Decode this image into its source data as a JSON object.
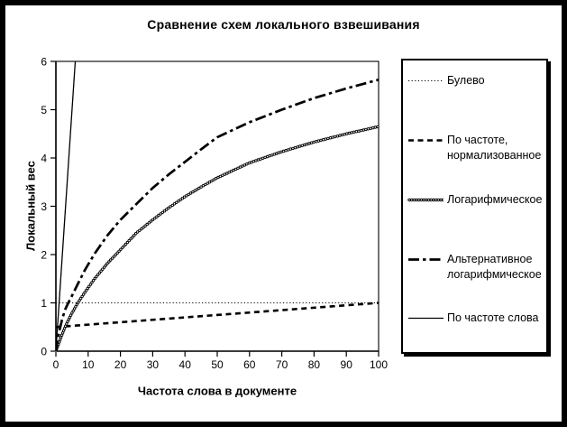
{
  "chart_data": {
    "type": "line",
    "title": "Сравнение схем локального взвешивания",
    "xlabel": "Частота слова в документе",
    "ylabel": "Локальный вес",
    "xlim": [
      0,
      100
    ],
    "ylim": [
      0,
      6
    ],
    "xticks": [
      0,
      10,
      20,
      30,
      40,
      50,
      60,
      70,
      80,
      90,
      100
    ],
    "yticks": [
      0,
      1,
      2,
      3,
      4,
      5,
      6
    ],
    "grid": false,
    "background": "#ffffff",
    "line_color": "#000000",
    "legend_position": "right",
    "series": [
      {
        "name": "Булево",
        "style": "dotted-thin",
        "x": [
          0,
          100
        ],
        "y": [
          1,
          1
        ]
      },
      {
        "name": "По частоте,\nнормализованное",
        "style": "dashed-bold",
        "x": [
          0,
          100
        ],
        "y": [
          0.5,
          1.0
        ]
      },
      {
        "name": "Логарифмическое",
        "style": "circle-chain",
        "x": [
          0,
          1,
          2,
          3,
          4,
          5,
          7,
          9,
          12,
          16,
          20,
          25,
          30,
          35,
          40,
          45,
          50,
          60,
          70,
          80,
          90,
          100
        ],
        "y": [
          0,
          0.18,
          0.36,
          0.52,
          0.66,
          0.79,
          1.02,
          1.22,
          1.5,
          1.82,
          2.1,
          2.45,
          2.72,
          2.97,
          3.2,
          3.4,
          3.59,
          3.9,
          4.13,
          4.33,
          4.5,
          4.65
        ]
      },
      {
        "name": "Альтернативное\nлогарифмическое",
        "style": "dashdot-bold",
        "x": [
          0,
          1,
          2,
          3,
          4,
          5,
          7,
          9,
          12,
          16,
          20,
          25,
          30,
          35,
          40,
          45,
          50,
          60,
          70,
          80,
          90,
          100
        ],
        "y": [
          0,
          0.4,
          0.68,
          0.88,
          1.02,
          1.15,
          1.42,
          1.68,
          2.02,
          2.4,
          2.72,
          3.05,
          3.38,
          3.66,
          3.92,
          4.18,
          4.43,
          4.74,
          5.0,
          5.24,
          5.44,
          5.62
        ]
      },
      {
        "name": "По частоте слова",
        "style": "solid-thin",
        "x": [
          0,
          6
        ],
        "y": [
          0,
          6
        ]
      }
    ]
  }
}
